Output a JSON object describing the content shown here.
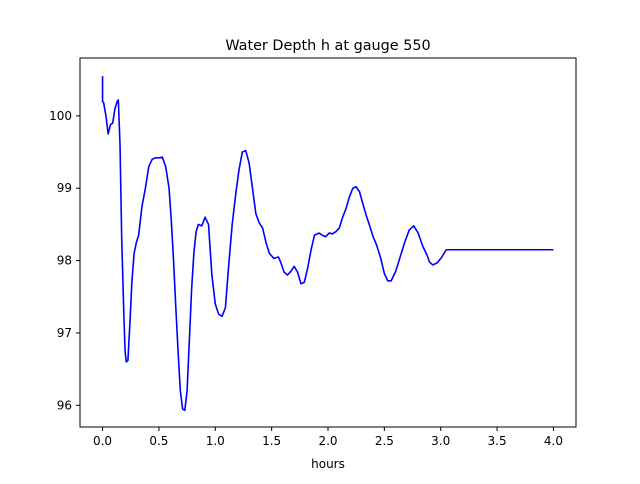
{
  "chart_data": {
    "type": "line",
    "title": "Water Depth h at gauge 550",
    "xlabel": "hours",
    "ylabel": "",
    "xlim": [
      -0.2,
      4.2
    ],
    "ylim": [
      95.7,
      100.8
    ],
    "xticks": [
      0.0,
      0.5,
      1.0,
      1.5,
      2.0,
      2.5,
      3.0,
      3.5,
      4.0
    ],
    "xtick_labels": [
      "0.0",
      "0.5",
      "1.0",
      "1.5",
      "2.0",
      "2.5",
      "3.0",
      "3.5",
      "4.0"
    ],
    "yticks": [
      96,
      97,
      98,
      99,
      100
    ],
    "ytick_labels": [
      "96",
      "97",
      "98",
      "99",
      "100"
    ],
    "grid": false,
    "legend": "none",
    "series": [
      {
        "color": "#0000ff",
        "x": [
          0.0,
          0.0,
          0.01,
          0.03,
          0.05,
          0.07,
          0.09,
          0.11,
          0.13,
          0.14,
          0.155,
          0.17,
          0.19,
          0.2,
          0.21,
          0.225,
          0.245,
          0.26,
          0.28,
          0.3,
          0.32,
          0.35,
          0.38,
          0.41,
          0.44,
          0.47,
          0.5,
          0.53,
          0.56,
          0.59,
          0.61,
          0.63,
          0.65,
          0.67,
          0.69,
          0.71,
          0.73,
          0.75,
          0.77,
          0.79,
          0.81,
          0.83,
          0.85,
          0.88,
          0.91,
          0.94,
          0.97,
          1.0,
          1.03,
          1.06,
          1.09,
          1.12,
          1.15,
          1.18,
          1.21,
          1.24,
          1.27,
          1.3,
          1.33,
          1.36,
          1.39,
          1.42,
          1.45,
          1.48,
          1.52,
          1.56,
          1.58,
          1.61,
          1.64,
          1.67,
          1.7,
          1.73,
          1.76,
          1.79,
          1.82,
          1.85,
          1.88,
          1.92,
          1.95,
          1.98,
          2.01,
          2.04,
          2.07,
          2.1,
          2.13,
          2.16,
          2.19,
          2.22,
          2.25,
          2.28,
          2.31,
          2.34,
          2.37,
          2.4,
          2.43,
          2.47,
          2.5,
          2.53,
          2.56,
          2.6,
          2.64,
          2.68,
          2.72,
          2.76,
          2.8,
          2.84,
          2.88,
          2.9,
          2.93,
          2.97,
          3.01,
          3.05,
          3.1,
          3.15,
          3.2,
          3.25,
          3.3,
          3.35,
          3.4,
          3.45,
          3.5,
          3.55,
          3.6,
          3.65,
          3.7,
          3.75,
          3.8,
          3.85,
          3.9,
          3.95,
          4.0
        ],
        "values": [
          100.55,
          100.2,
          100.18,
          100.0,
          99.75,
          99.88,
          99.9,
          100.1,
          100.2,
          100.22,
          99.6,
          98.3,
          97.2,
          96.75,
          96.6,
          96.62,
          97.2,
          97.7,
          98.1,
          98.25,
          98.35,
          98.75,
          99.0,
          99.3,
          99.4,
          99.42,
          99.42,
          99.43,
          99.3,
          99.0,
          98.55,
          98.0,
          97.35,
          96.75,
          96.2,
          95.95,
          95.93,
          96.2,
          96.9,
          97.6,
          98.1,
          98.4,
          98.5,
          98.48,
          98.6,
          98.5,
          97.8,
          97.4,
          97.26,
          97.23,
          97.35,
          97.95,
          98.5,
          98.9,
          99.25,
          99.5,
          99.52,
          99.35,
          99.0,
          98.65,
          98.52,
          98.45,
          98.25,
          98.1,
          98.03,
          98.05,
          97.98,
          97.84,
          97.8,
          97.85,
          97.92,
          97.84,
          97.68,
          97.7,
          97.9,
          98.15,
          98.35,
          98.38,
          98.35,
          98.33,
          98.38,
          98.37,
          98.4,
          98.45,
          98.6,
          98.72,
          98.88,
          99.0,
          99.02,
          98.95,
          98.78,
          98.62,
          98.48,
          98.33,
          98.22,
          98.02,
          97.82,
          97.72,
          97.72,
          97.85,
          98.05,
          98.25,
          98.42,
          98.48,
          98.38,
          98.2,
          98.07,
          97.98,
          97.94,
          97.97,
          98.05,
          98.15,
          98.15,
          98.15,
          98.15,
          98.15,
          98.15,
          98.15,
          98.15,
          98.15,
          98.15,
          98.15,
          98.15,
          98.15,
          98.15,
          98.15,
          98.15,
          98.15,
          98.15,
          98.15,
          98.15
        ]
      }
    ]
  }
}
